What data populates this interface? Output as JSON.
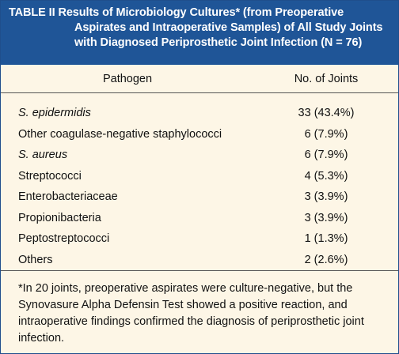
{
  "table": {
    "title_line1": "TABLE II Results of Microbiology Cultures* (from Preoperative",
    "title_line2": "Aspirates and Intraoperative Samples) of All Study Joints",
    "title_line3": "with Diagnosed Periprosthetic Joint Infection (N = 76)",
    "col_pathogen": "Pathogen",
    "col_joints": "No. of Joints",
    "rows": [
      {
        "pathogen": "S. epidermidis",
        "joints": "33 (43.4%)"
      },
      {
        "pathogen": "Other coagulase-negative staphylococci",
        "joints": "6 (7.9%)"
      },
      {
        "pathogen": "S. aureus",
        "joints": "6 (7.9%)"
      },
      {
        "pathogen": "Streptococci",
        "joints": "4 (5.3%)"
      },
      {
        "pathogen": "Enterobacteriaceae",
        "joints": "3 (3.9%)"
      },
      {
        "pathogen": "Propionibacteria",
        "joints": "3 (3.9%)"
      },
      {
        "pathogen": "Peptostreptococci",
        "joints": "1 (1.3%)"
      },
      {
        "pathogen": "Others",
        "joints": "2 (2.6%)"
      }
    ],
    "footnote": "*In 20 joints, preoperative aspirates were culture-negative, but the Synovasure Alpha Defensin Test showed a positive reaction, and intraoperative findings confirmed the diagnosis of periprosthetic joint infection."
  },
  "colors": {
    "header_bg": "#1f5597",
    "body_bg": "#fdf6e6"
  }
}
